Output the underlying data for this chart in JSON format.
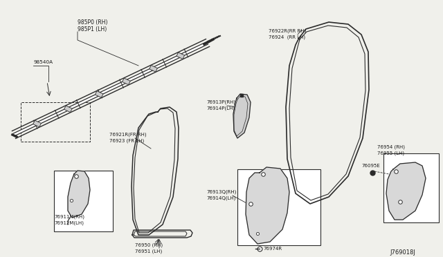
{
  "bg_color": "#f0f0eb",
  "line_color": "#2a2a2a",
  "text_color": "#1a1a1a",
  "diagram_id": "J769018J",
  "labels": {
    "airbag_rh": "985P0 (RH)",
    "airbag_lh": "985P1 (LH)",
    "clip": "98540A",
    "front_rh_seal": "76921R(FR RH)",
    "front_lh_seal": "76923 (FR LH)",
    "pillar_rh": "76913P(RH)",
    "pillar_lh": "76914P(LH)",
    "rear_rh_seal": "76922R(RR RH)",
    "rear_lh_seal": "76924  (RR LH)",
    "center_pillar_rh": "76913Q(RH)",
    "center_pillar_lh": "76914Q(LH)",
    "sill_rh": "76950 (RH)",
    "sill_lh": "76951 (LH)",
    "a_pillar_rh": "76911M(RH)",
    "a_pillar_lh": "76912M(LH)",
    "bracket_rh": "76954 (RH)",
    "bracket_lh": "76955 (LH)",
    "grommet": "76095E",
    "bolt": "76974R"
  }
}
